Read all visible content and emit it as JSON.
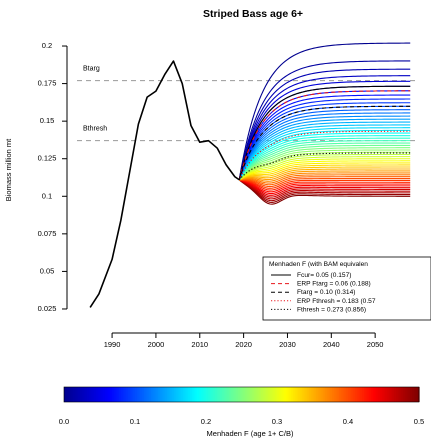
{
  "chart_data": {
    "type": "line",
    "title": "Striped Bass age 6+",
    "ylabel": "Biomass million mt",
    "xlim": [
      1982,
      2060
    ],
    "ylim": [
      0.015,
      0.21
    ],
    "x_ticks": [
      1990,
      2000,
      2010,
      2020,
      2030,
      2040,
      2050
    ],
    "y_ticks": [
      0.025,
      0.05,
      0.075,
      0.1,
      0.125,
      0.15,
      0.175,
      0.2
    ],
    "y_tick_labels": [
      "0.025",
      "0.05",
      "0.075",
      "0.1",
      "0.125",
      "0.15",
      "0.175",
      "0.2"
    ],
    "reference_lines": [
      {
        "name": "Btarg",
        "y": 0.177
      },
      {
        "name": "Bthresh",
        "y": 0.137
      }
    ],
    "historical": {
      "x": [
        1985,
        1987,
        1990,
        1992,
        1994,
        1996,
        1998,
        2000,
        2002,
        2004,
        2006,
        2008,
        2010,
        2012,
        2014,
        2016,
        2018,
        2019
      ],
      "y": [
        0.026,
        0.035,
        0.058,
        0.084,
        0.116,
        0.148,
        0.166,
        0.17,
        0.181,
        0.19,
        0.175,
        0.147,
        0.136,
        0.137,
        0.132,
        0.121,
        0.113,
        0.111
      ]
    },
    "projection": {
      "start_year": 2019,
      "end_year": 2058,
      "f_min": 0.0,
      "f_max": 0.5,
      "n_lines": 51,
      "y_at_f0_plateau": 0.202,
      "y_at_f05_min": 0.092,
      "y_at_f05_end": 0.1
    },
    "legend": {
      "title": "Menhaden F (with BAM equivalen",
      "entries": [
        {
          "label": "Fcur= 0.05 (0.157)",
          "style": "solid",
          "color": "#000000",
          "f": 0.05
        },
        {
          "label": "ERP Ftarg = 0.06 (0.188)",
          "style": "dashed",
          "color": "#e8151b",
          "f": 0.06
        },
        {
          "label": "Ftarg = 0.10 (0.314)",
          "style": "dashed",
          "color": "#000000",
          "f": 0.1
        },
        {
          "label": "ERP Fthresh = 0.183 (0.57",
          "style": "dotted",
          "color": "#e8151b",
          "f": 0.183
        },
        {
          "label": "Fthresh = 0.273 (0.856)",
          "style": "dotted",
          "color": "#000000",
          "f": 0.273
        }
      ]
    },
    "colorbar": {
      "label": "Menhaden F (age 1+ C/B)",
      "range": [
        0.0,
        0.5
      ],
      "ticks": [
        0.0,
        0.1,
        0.2,
        0.3,
        0.4,
        0.5
      ],
      "tick_labels": [
        "0.0",
        "0.1",
        "0.2",
        "0.3",
        "0.4",
        "0.5"
      ],
      "colormap": [
        "#00008f",
        "#0000ff",
        "#0080ff",
        "#00ffff",
        "#80ff80",
        "#ffff00",
        "#ff8000",
        "#ff0000",
        "#800000"
      ]
    }
  }
}
